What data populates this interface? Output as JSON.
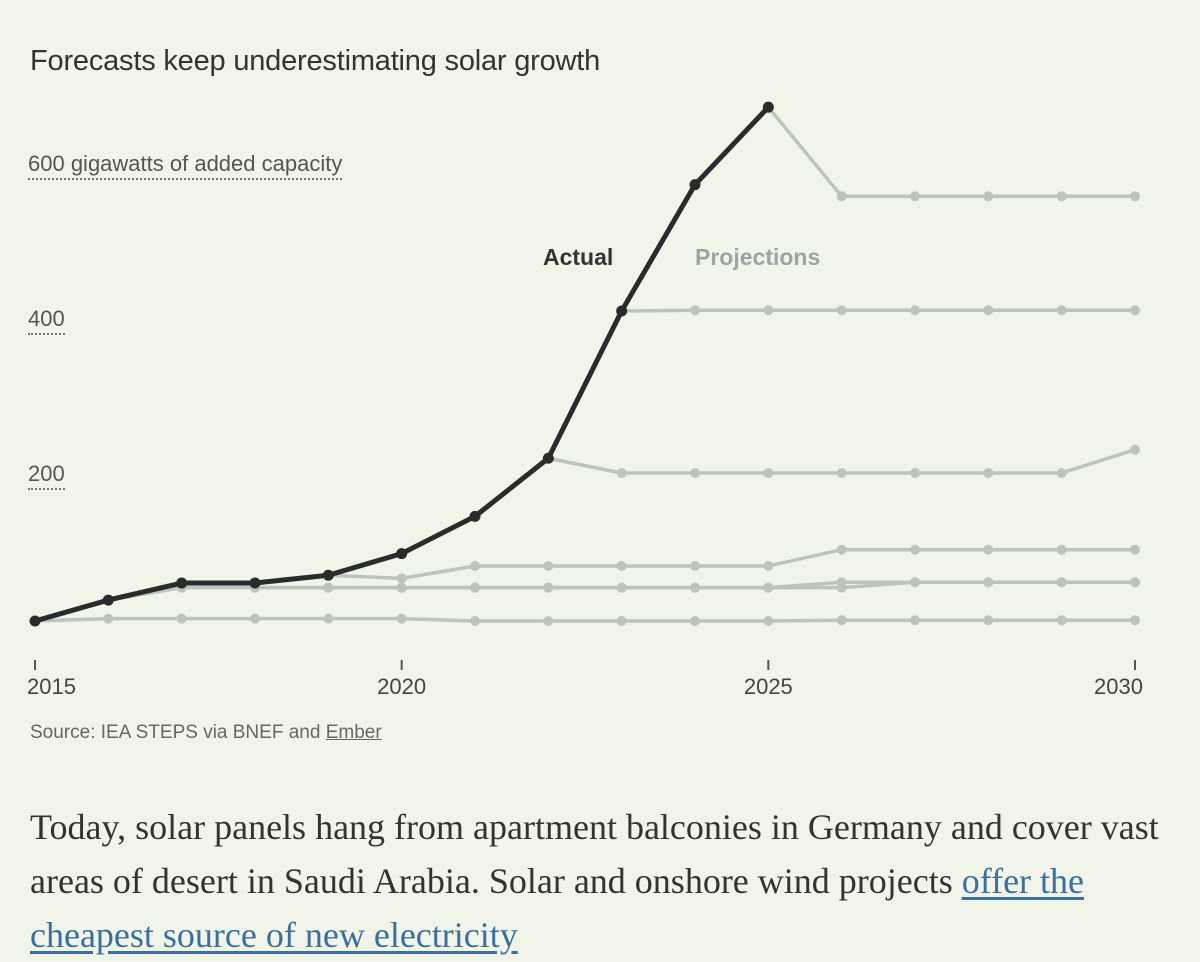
{
  "chart_data": {
    "type": "line",
    "title": "Forecasts keep underestimating solar growth",
    "ylabel": "600 gigawatts of added capacity",
    "y_ticks": [
      {
        "value": 600,
        "label": "600 gigawatts of added capacity"
      },
      {
        "value": 400,
        "label": "400"
      },
      {
        "value": 200,
        "label": "200"
      }
    ],
    "x_ticks": [
      2015,
      2020,
      2025,
      2030
    ],
    "xlim": [
      2015,
      2030
    ],
    "ylim": [
      -45,
      690
    ],
    "grid": false,
    "colors": {
      "actual": "#2b2b2b",
      "projection": "#bcc4bc",
      "projection_label": "#9aa5a4"
    },
    "series": [
      {
        "name": "Actual",
        "x": [
          2015,
          2016,
          2017,
          2018,
          2019,
          2020,
          2021,
          2022,
          2023,
          2024,
          2025
        ],
        "values": [
          0,
          27,
          49,
          49,
          59,
          87,
          135,
          210,
          400,
          563,
          663
        ]
      }
    ],
    "projections": [
      {
        "x": [
          2015,
          2016,
          2017,
          2018,
          2019,
          2020,
          2021,
          2022,
          2023,
          2024,
          2025,
          2026,
          2027,
          2028,
          2029,
          2030
        ],
        "values": [
          0,
          3,
          3,
          3,
          3,
          3,
          0,
          0,
          0,
          0,
          0,
          1,
          1,
          1,
          1,
          1
        ]
      },
      {
        "x": [
          2016,
          2017,
          2018,
          2019,
          2020,
          2021,
          2022,
          2023,
          2024,
          2025,
          2026,
          2027,
          2028,
          2029,
          2030
        ],
        "values": [
          27,
          43,
          43,
          43,
          43,
          43,
          43,
          43,
          43,
          43,
          50,
          50,
          50,
          50,
          50
        ]
      },
      {
        "x": [
          2017,
          2018,
          2019,
          2020,
          2021,
          2022,
          2023,
          2024,
          2025,
          2026,
          2027,
          2028,
          2029,
          2030
        ],
        "values": [
          49,
          43,
          43,
          43,
          43,
          43,
          43,
          43,
          43,
          43,
          50,
          50,
          50,
          50
        ]
      },
      {
        "x": [
          2018,
          2019,
          2020,
          2021,
          2022,
          2023,
          2024,
          2025,
          2026,
          2027,
          2028,
          2029,
          2030
        ],
        "values": [
          49,
          59,
          55,
          71,
          71,
          71,
          71,
          71,
          92,
          92,
          92,
          92,
          92
        ]
      },
      {
        "x": [
          2022,
          2023,
          2024,
          2025,
          2026,
          2027,
          2028,
          2029,
          2030
        ],
        "values": [
          210,
          191,
          191,
          191,
          191,
          191,
          191,
          191,
          221
        ]
      },
      {
        "x": [
          2023,
          2024,
          2025,
          2026,
          2027,
          2028,
          2029,
          2030
        ],
        "values": [
          400,
          401,
          401,
          401,
          401,
          401,
          401,
          401
        ]
      },
      {
        "x": [
          2025,
          2026,
          2027,
          2028,
          2029,
          2030
        ],
        "values": [
          663,
          548,
          548,
          548,
          548,
          548
        ]
      }
    ],
    "series_labels": {
      "actual": "Actual",
      "projections": "Projections"
    }
  },
  "source": {
    "prefix": "Source: IEA STEPS via BNEF and ",
    "link": "Ember"
  },
  "body": {
    "text": "Today, solar panels hang from apartment balconies in Germany and cover vast areas of desert in Saudi Arabia. Solar and onshore wind projects ",
    "link": "offer the cheapest source of new electricity"
  }
}
